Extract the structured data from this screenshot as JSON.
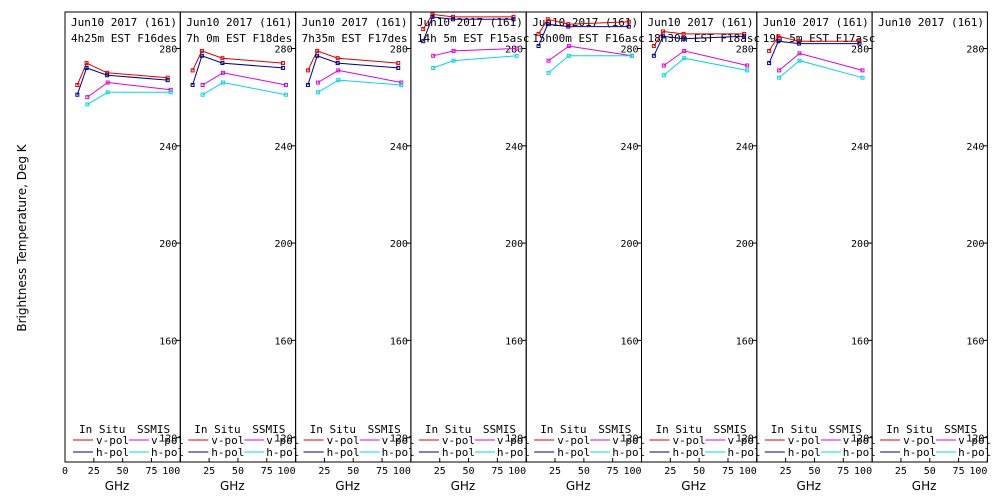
{
  "chart_data": {
    "type": "line",
    "ylabel": "Brightness Temperature, Deg K",
    "xlabel": "GHz",
    "xlim": [
      0,
      100
    ],
    "ylim": [
      110,
      295
    ],
    "x_ticks": [
      "0",
      "25",
      "50",
      "75",
      "100"
    ],
    "y_ticks": [
      "120",
      "160",
      "200",
      "240",
      "280"
    ],
    "legend": {
      "insitu_label": "In Situ",
      "ssmis_label": "SSMIS",
      "vpol_label": "v-pol",
      "hpol_label": "h-pol"
    },
    "colors": {
      "insitu_v": "#e00000",
      "insitu_h": "#000090",
      "ssmis_v": "#e000e0",
      "ssmis_h": "#00d8e8"
    },
    "panels": [
      {
        "line1": "Jun10 2017 (161)",
        "line2": "4h25m EST F16des",
        "insitu_v": {
          "x": [
            10.7,
            18.7,
            36.5,
            89
          ],
          "y": [
            265,
            274,
            270,
            268
          ]
        },
        "insitu_h": {
          "x": [
            10.7,
            18.7,
            36.5,
            89
          ],
          "y": [
            261,
            272,
            269,
            267
          ]
        },
        "ssmis_v": {
          "x": [
            19.35,
            37,
            91.65
          ],
          "y": [
            260,
            266,
            263
          ]
        },
        "ssmis_h": {
          "x": [
            19.35,
            37,
            91.65
          ],
          "y": [
            257,
            262,
            262
          ]
        }
      },
      {
        "line1": "Jun10 2017 (161)",
        "line2": "7h 0m EST F18des",
        "insitu_v": {
          "x": [
            10.7,
            18.7,
            36.5,
            89
          ],
          "y": [
            271,
            279,
            276,
            274
          ]
        },
        "insitu_h": {
          "x": [
            10.7,
            18.7,
            36.5,
            89
          ],
          "y": [
            265,
            277,
            274,
            272
          ]
        },
        "ssmis_v": {
          "x": [
            19.35,
            37,
            91.65
          ],
          "y": [
            265,
            270,
            265
          ]
        },
        "ssmis_h": {
          "x": [
            19.35,
            37,
            91.65
          ],
          "y": [
            261,
            266,
            261
          ]
        }
      },
      {
        "line1": "Jun10 2017 (161)",
        "line2": "7h35m EST F17des",
        "insitu_v": {
          "x": [
            10.7,
            18.7,
            36.5,
            89
          ],
          "y": [
            271,
            279,
            276,
            274
          ]
        },
        "insitu_h": {
          "x": [
            10.7,
            18.7,
            36.5,
            89
          ],
          "y": [
            265,
            277,
            274,
            272
          ]
        },
        "ssmis_v": {
          "x": [
            19.35,
            37,
            91.65
          ],
          "y": [
            266,
            271,
            266
          ]
        },
        "ssmis_h": {
          "x": [
            19.35,
            37,
            91.65
          ],
          "y": [
            262,
            267,
            265
          ]
        }
      },
      {
        "line1": "Jun10 2017 (161)",
        "line2": "14h 5m EST F15asc",
        "insitu_v": {
          "x": [
            10.7,
            18.7,
            36.5,
            89
          ],
          "y": [
            288,
            294,
            293,
            293
          ]
        },
        "insitu_h": {
          "x": [
            10.7,
            18.7,
            36.5,
            89
          ],
          "y": [
            283,
            293,
            292,
            292
          ]
        },
        "ssmis_v": {
          "x": [
            19.35,
            37,
            91.65
          ],
          "y": [
            277,
            279,
            280
          ]
        },
        "ssmis_h": {
          "x": [
            19.35,
            37,
            91.65
          ],
          "y": [
            272,
            275,
            277
          ]
        }
      },
      {
        "line1": "Jun10 2017 (161)",
        "line2": "15h00m EST F16asc",
        "insitu_v": {
          "x": [
            10.7,
            18.7,
            36.5,
            89
          ],
          "y": [
            286,
            292,
            290,
            291
          ]
        },
        "insitu_h": {
          "x": [
            10.7,
            18.7,
            36.5,
            89
          ],
          "y": [
            281,
            290,
            289,
            289
          ]
        },
        "ssmis_v": {
          "x": [
            19.35,
            37,
            91.65
          ],
          "y": [
            275,
            281,
            277
          ]
        },
        "ssmis_h": {
          "x": [
            19.35,
            37,
            91.65
          ],
          "y": [
            270,
            277,
            277
          ]
        }
      },
      {
        "line1": "Jun10 2017 (161)",
        "line2": "18h30m EST F18asc",
        "insitu_v": {
          "x": [
            10.7,
            18.7,
            36.5,
            89
          ],
          "y": [
            281,
            287,
            286,
            286
          ]
        },
        "insitu_h": {
          "x": [
            10.7,
            18.7,
            36.5,
            89
          ],
          "y": [
            277,
            285,
            284,
            285
          ]
        },
        "ssmis_v": {
          "x": [
            19.35,
            37,
            91.65
          ],
          "y": [
            273,
            279,
            273
          ]
        },
        "ssmis_h": {
          "x": [
            19.35,
            37,
            91.65
          ],
          "y": [
            269,
            276,
            271
          ]
        }
      },
      {
        "line1": "Jun10 2017 (161)",
        "line2": "19h 5m EST F17asc",
        "insitu_v": {
          "x": [
            10.7,
            18.7,
            36.5,
            89
          ],
          "y": [
            279,
            285,
            283,
            283
          ]
        },
        "insitu_h": {
          "x": [
            10.7,
            18.7,
            36.5,
            89
          ],
          "y": [
            274,
            283,
            282,
            282
          ]
        },
        "ssmis_v": {
          "x": [
            19.35,
            37,
            91.65
          ],
          "y": [
            271,
            278,
            271
          ]
        },
        "ssmis_h": {
          "x": [
            19.35,
            37,
            91.65
          ],
          "y": [
            268,
            275,
            268
          ]
        }
      },
      {
        "line1": "Jun10 2017 (161)",
        "line2": ""
      }
    ]
  }
}
